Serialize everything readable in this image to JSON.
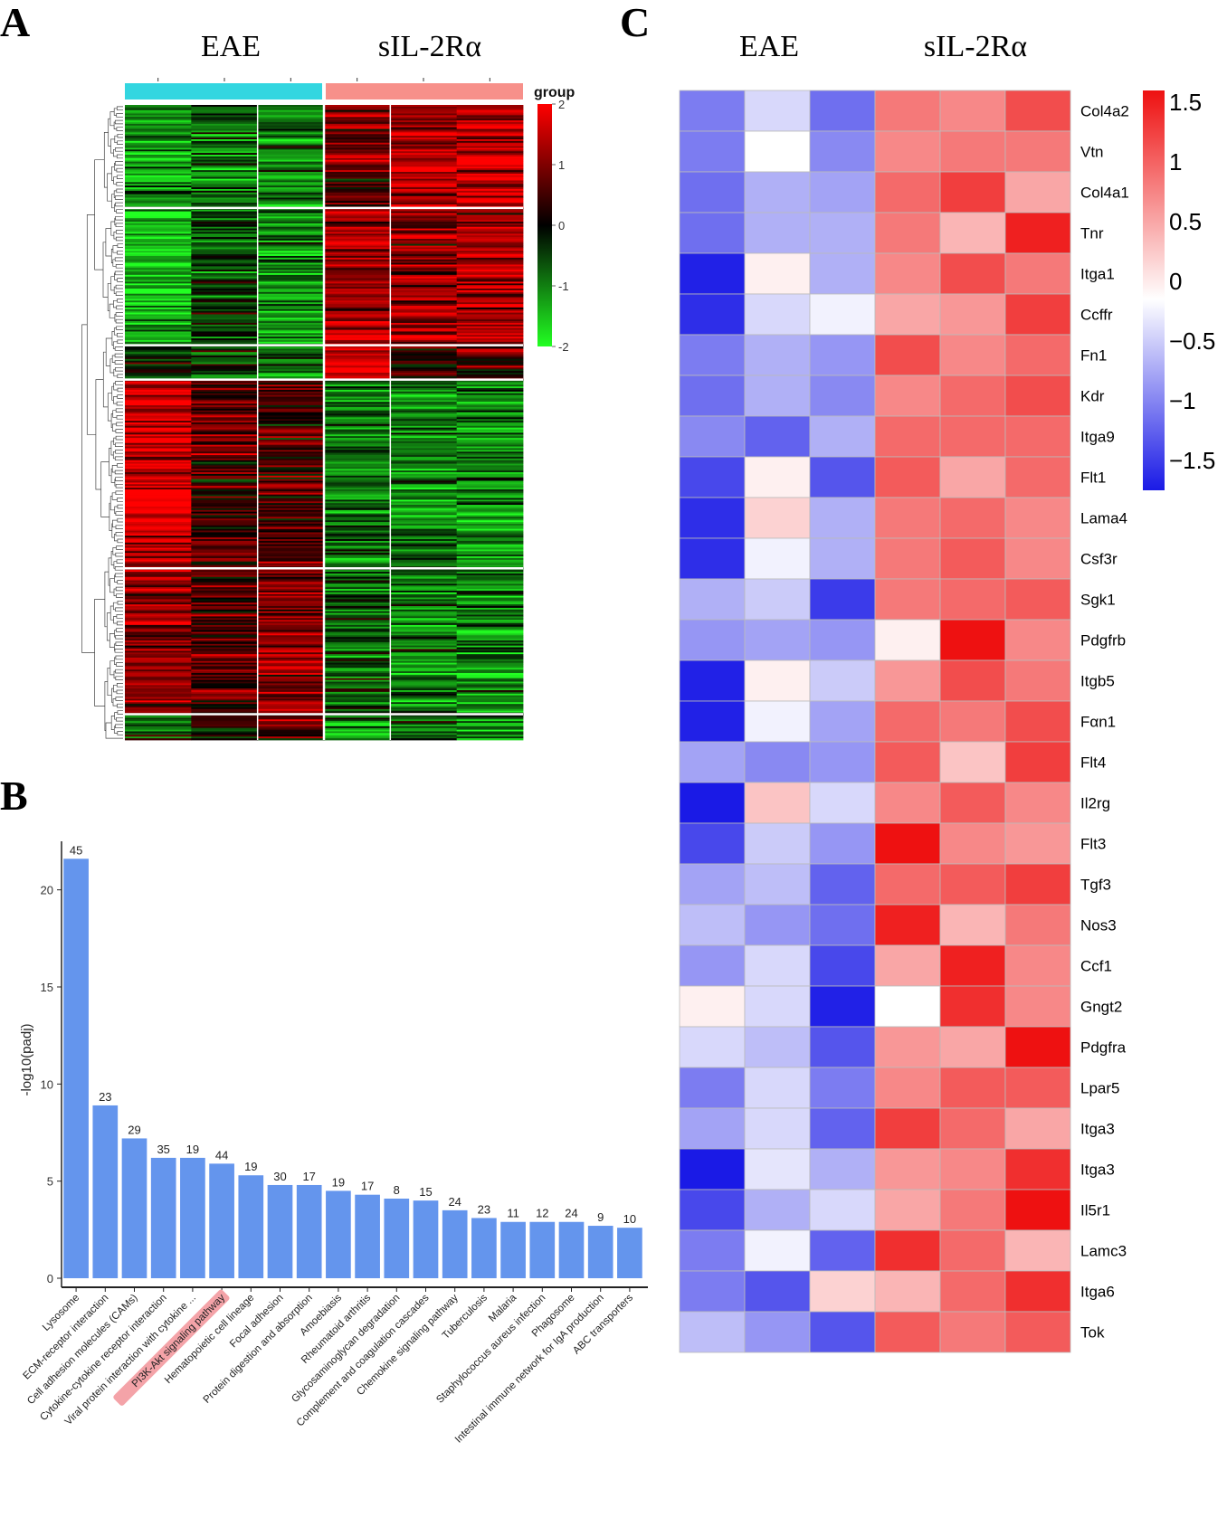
{
  "panels": {
    "a": "A",
    "b": "B",
    "c": "C"
  },
  "chart_data": [
    {
      "type": "heatmap",
      "panel": "A",
      "column_groups": [
        {
          "name": "EAE",
          "columns": 3,
          "color": "#33d6e0"
        },
        {
          "name": "sIL-2Rα",
          "columns": 3,
          "color": "#f7908a"
        }
      ],
      "legend_title": "group",
      "colorbar": {
        "min": -2,
        "max": 2,
        "ticks": [
          2,
          1,
          0,
          -1,
          -2
        ],
        "low_color": "#22ff22",
        "mid_color": "#000000",
        "high_color": "#ff0000"
      },
      "row_clusters": [
        {
          "rows": 60,
          "pattern": [
            -1.2,
            -0.9,
            -1.0,
            0.9,
            1.3,
            1.5
          ]
        },
        {
          "rows": 80,
          "pattern": [
            -1.3,
            -0.6,
            -1.1,
            1.4,
            1.0,
            1.2
          ]
        },
        {
          "rows": 20,
          "pattern": [
            -0.4,
            -0.5,
            -1.0,
            1.6,
            0.3,
            0.5
          ]
        },
        {
          "rows": 110,
          "pattern": [
            1.6,
            0.6,
            0.6,
            -0.8,
            -0.9,
            -1.1
          ]
        },
        {
          "rows": 85,
          "pattern": [
            1.1,
            0.5,
            1.0,
            -0.7,
            -0.8,
            -0.9
          ]
        },
        {
          "rows": 15,
          "pattern": [
            -0.5,
            0.3,
            0.6,
            -1.0,
            -0.5,
            -0.8
          ]
        }
      ]
    },
    {
      "type": "bar",
      "panel": "B",
      "ylabel": "-log10(padj)",
      "ylim": [
        0,
        22.5
      ],
      "yticks": [
        0,
        5,
        10,
        15,
        20
      ],
      "bar_color": "#6495ed",
      "highlight_category": "PI3K-Akt signaling pathway",
      "highlight_color": "#f4a3a8",
      "categories": [
        "Lysosome",
        "ECM-receptor interaction",
        "Cell adhesion molecules (CAMs)",
        "Cytokine-cytokine receptor interaction",
        "Viral protein interaction with cytokine ...",
        "PI3K-Akt signaling pathway",
        "Hematopoietic cell lineage",
        "Focal adhesion",
        "Protein digestion and absorption",
        "Amoebiasis",
        "Rheumatoid arthritis",
        "Glycosaminoglycan degradation",
        "Complement and coagulation cascades",
        "Chemokine signaling pathway",
        "Tuberculosis",
        "Malaria",
        "Staphylococcus aureus infection",
        "Phagosome",
        "Intestinal immune network for IgA production",
        "ABC transporters"
      ],
      "values": [
        21.6,
        8.9,
        7.2,
        6.2,
        6.2,
        5.9,
        5.3,
        4.8,
        4.8,
        4.5,
        4.3,
        4.1,
        4.0,
        3.5,
        3.1,
        2.9,
        2.9,
        2.9,
        2.7,
        2.6
      ],
      "data_labels": [
        "45",
        "23",
        "29",
        "35",
        "19",
        "44",
        "19",
        "30",
        "17",
        "19",
        "17",
        "8",
        "15",
        "24",
        "23",
        "11",
        "12",
        "24",
        "9",
        "10"
      ]
    },
    {
      "type": "heatmap",
      "panel": "C",
      "column_groups": [
        "EAE",
        "sIL-2Rα"
      ],
      "colorbar": {
        "min": -1.75,
        "max": 1.6,
        "ticks": [
          "1.5",
          "1",
          "0.5",
          "0",
          "−0.5",
          "−1",
          "−1.5"
        ],
        "tick_values": [
          1.5,
          1,
          0.5,
          0,
          -0.5,
          -1,
          -1.5
        ],
        "low_color": "#1a1ae6",
        "mid_color": "#ffffff",
        "high_color": "#ee1111"
      },
      "rows": [
        "Col4a2",
        "Vtn",
        "Col4a1",
        "Tnr",
        "Itga1",
        "Ccffr",
        "Fn1",
        "Kdr",
        "Itga9",
        "Flt1",
        "Lama4",
        "Csf3r",
        "Sgk1",
        "Pdgfrb",
        "Itgb5",
        "Fαn1",
        "Flt4",
        "Il2rg",
        "Flt3",
        "Tgf3",
        "Nos3",
        "Ccf1",
        "Gngt2",
        "Pdgfra",
        "Lpar5",
        "Itga3",
        "Itga3",
        "Il5r1",
        "Lamc3",
        "Itga6",
        "Tok"
      ],
      "values": [
        [
          -1.0,
          -0.3,
          -1.1,
          0.9,
          0.8,
          1.2
        ],
        [
          -1.0,
          0.0,
          -0.9,
          0.8,
          0.9,
          0.9
        ],
        [
          -1.1,
          -0.6,
          -0.7,
          1.0,
          1.3,
          0.6
        ],
        [
          -1.1,
          -0.6,
          -0.6,
          0.9,
          0.5,
          1.5
        ],
        [
          -1.7,
          0.1,
          -0.6,
          0.8,
          1.2,
          0.9
        ],
        [
          -1.6,
          -0.3,
          -0.1,
          0.6,
          0.7,
          1.3
        ],
        [
          -1.0,
          -0.6,
          -0.8,
          1.2,
          0.8,
          1.0
        ],
        [
          -1.1,
          -0.6,
          -0.9,
          0.8,
          1.0,
          1.2
        ],
        [
          -0.9,
          -1.2,
          -0.6,
          1.0,
          1.0,
          1.0
        ],
        [
          -1.4,
          0.1,
          -1.3,
          1.1,
          0.6,
          1.0
        ],
        [
          -1.6,
          0.3,
          -0.6,
          0.9,
          1.0,
          0.8
        ],
        [
          -1.6,
          -0.1,
          -0.6,
          0.9,
          1.1,
          0.8
        ],
        [
          -0.6,
          -0.4,
          -1.5,
          0.9,
          1.0,
          1.1
        ],
        [
          -0.8,
          -0.7,
          -0.8,
          0.1,
          1.6,
          0.8
        ],
        [
          -1.7,
          0.1,
          -0.4,
          0.7,
          1.2,
          0.9
        ],
        [
          -1.7,
          -0.1,
          -0.7,
          1.0,
          0.9,
          1.2
        ],
        [
          -0.7,
          -0.9,
          -0.8,
          1.1,
          0.4,
          1.3
        ],
        [
          -1.8,
          0.4,
          -0.3,
          0.8,
          1.1,
          0.8
        ],
        [
          -1.4,
          -0.4,
          -0.8,
          1.6,
          0.8,
          0.7
        ],
        [
          -0.7,
          -0.5,
          -1.2,
          1.0,
          1.1,
          1.3
        ],
        [
          -0.5,
          -0.8,
          -1.1,
          1.5,
          0.5,
          0.9
        ],
        [
          -0.8,
          -0.3,
          -1.4,
          0.6,
          1.5,
          0.8
        ],
        [
          0.1,
          -0.3,
          -1.7,
          0.0,
          1.4,
          0.8
        ],
        [
          -0.3,
          -0.5,
          -1.3,
          0.7,
          0.6,
          1.6
        ],
        [
          -1.0,
          -0.3,
          -1.0,
          0.8,
          1.1,
          1.1
        ],
        [
          -0.7,
          -0.3,
          -1.2,
          1.3,
          1.0,
          0.6
        ],
        [
          -1.8,
          -0.2,
          -0.6,
          0.7,
          0.8,
          1.4
        ],
        [
          -1.4,
          -0.6,
          -0.3,
          0.6,
          0.9,
          1.6
        ],
        [
          -1.0,
          -0.1,
          -1.2,
          1.4,
          1.0,
          0.5
        ],
        [
          -1.0,
          -1.3,
          0.3,
          0.5,
          1.0,
          1.4
        ],
        [
          -0.5,
          -0.8,
          -1.3,
          1.1,
          0.9,
          1.1
        ]
      ]
    }
  ]
}
